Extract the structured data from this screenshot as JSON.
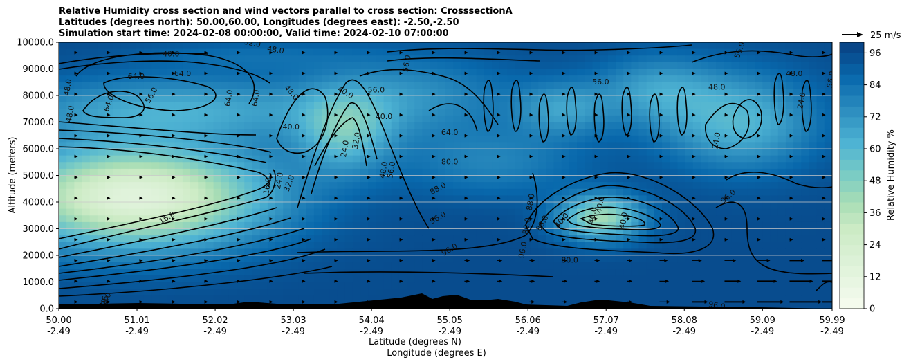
{
  "chart_data": {
    "type": "contourf",
    "title_lines": [
      "Relative Humidity cross section and wind vectors parallel to cross section: CrosssectionA",
      "Latitudes (degrees north): 50.00,60.00, Longitudes (degrees east): -2.50,-2.50",
      "Simulation start time: 2024-02-08 00:00:00, Valid time: 2024-02-10 07:00:00"
    ],
    "ylabel": "Altitude (meters)",
    "xlabel_lines": [
      "Latitude (degrees N)",
      "Longitude (degrees E)"
    ],
    "ylim": [
      0,
      10000
    ],
    "y_ticks": [
      0,
      1000,
      2000,
      3000,
      4000,
      5000,
      6000,
      7000,
      8000,
      9000,
      10000
    ],
    "y_tick_labels": [
      "0.0",
      "1000.0",
      "2000.0",
      "3000.0",
      "4000.0",
      "5000.0",
      "6000.0",
      "7000.0",
      "8000.0",
      "9000.0",
      "10000.0"
    ],
    "xlim": [
      50.0,
      59.99
    ],
    "x_ticks": [
      {
        "lat": "50.00",
        "lon": "-2.49"
      },
      {
        "lat": "51.01",
        "lon": "-2.49"
      },
      {
        "lat": "52.02",
        "lon": "-2.49"
      },
      {
        "lat": "53.03",
        "lon": "-2.49"
      },
      {
        "lat": "54.04",
        "lon": "-2.49"
      },
      {
        "lat": "55.05",
        "lon": "-2.49"
      },
      {
        "lat": "56.06",
        "lon": "-2.49"
      },
      {
        "lat": "57.07",
        "lon": "-2.49"
      },
      {
        "lat": "58.08",
        "lon": "-2.49"
      },
      {
        "lat": "59.09",
        "lon": "-2.49"
      },
      {
        "lat": "59.99",
        "lon": "-2.49"
      }
    ],
    "colorbar": {
      "label": "Relative Humidity %",
      "range": [
        0,
        100
      ],
      "ticks": [
        0,
        12,
        24,
        36,
        48,
        60,
        72,
        84,
        96
      ],
      "levels": [
        0,
        4,
        8,
        12,
        16,
        20,
        24,
        28,
        32,
        36,
        40,
        44,
        48,
        52,
        56,
        60,
        64,
        68,
        72,
        76,
        80,
        84,
        88,
        92,
        96,
        100
      ]
    },
    "contour_labels": [
      {
        "text": "16.0",
        "x": 51.4,
        "y": 3400,
        "rot": -30
      },
      {
        "text": "16.0",
        "x": 52.7,
        "y": 4600,
        "rot": -80
      },
      {
        "text": "24.0",
        "x": 52.85,
        "y": 4800,
        "rot": -80
      },
      {
        "text": "32.0",
        "x": 52.98,
        "y": 4700,
        "rot": -70
      },
      {
        "text": "40.0",
        "x": 51.45,
        "y": 9550,
        "rot": 0
      },
      {
        "text": "32.0",
        "x": 52.5,
        "y": 9950,
        "rot": 10
      },
      {
        "text": "48.0",
        "x": 52.8,
        "y": 9700,
        "rot": 10
      },
      {
        "text": "64.0",
        "x": 51.0,
        "y": 8700,
        "rot": 0
      },
      {
        "text": "64.0",
        "x": 51.6,
        "y": 8800,
        "rot": 0
      },
      {
        "text": "48.0",
        "x": 50.12,
        "y": 8300,
        "rot": -80
      },
      {
        "text": "48.0",
        "x": 50.15,
        "y": 7300,
        "rot": -80
      },
      {
        "text": "64.0",
        "x": 50.65,
        "y": 7700,
        "rot": -70
      },
      {
        "text": "56.0",
        "x": 51.2,
        "y": 8000,
        "rot": -60
      },
      {
        "text": "64.0",
        "x": 52.2,
        "y": 7900,
        "rot": -80
      },
      {
        "text": "64.0",
        "x": 52.55,
        "y": 7900,
        "rot": -80
      },
      {
        "text": "48.0",
        "x": 53.0,
        "y": 8100,
        "rot": 50
      },
      {
        "text": "40.0",
        "x": 53.0,
        "y": 6800,
        "rot": 0
      },
      {
        "text": "40.0",
        "x": 53.7,
        "y": 8100,
        "rot": 30
      },
      {
        "text": "56.0",
        "x": 54.1,
        "y": 8200,
        "rot": 0
      },
      {
        "text": "40.0",
        "x": 54.2,
        "y": 7200,
        "rot": 0
      },
      {
        "text": "56.0",
        "x": 54.5,
        "y": 9200,
        "rot": -80
      },
      {
        "text": "24.0",
        "x": 53.7,
        "y": 6000,
        "rot": -80
      },
      {
        "text": "32.0",
        "x": 53.85,
        "y": 6300,
        "rot": -80
      },
      {
        "text": "48.0",
        "x": 54.2,
        "y": 5200,
        "rot": -80
      },
      {
        "text": "56.0",
        "x": 54.3,
        "y": 5200,
        "rot": -80
      },
      {
        "text": "64.0",
        "x": 55.05,
        "y": 6600,
        "rot": 0
      },
      {
        "text": "80.0",
        "x": 55.05,
        "y": 5500,
        "rot": 0
      },
      {
        "text": "88.0",
        "x": 54.9,
        "y": 4500,
        "rot": -30
      },
      {
        "text": "96.0",
        "x": 54.9,
        "y": 3400,
        "rot": -30
      },
      {
        "text": "96.0",
        "x": 55.05,
        "y": 2200,
        "rot": -30
      },
      {
        "text": "88.0",
        "x": 56.1,
        "y": 4000,
        "rot": -80
      },
      {
        "text": "80.0",
        "x": 56.05,
        "y": 3100,
        "rot": -80
      },
      {
        "text": "96.0",
        "x": 56.0,
        "y": 2200,
        "rot": -80
      },
      {
        "text": "88.0",
        "x": 56.25,
        "y": 3200,
        "rot": -60
      },
      {
        "text": "40.0",
        "x": 56.5,
        "y": 3300,
        "rot": -50
      },
      {
        "text": "40.0",
        "x": 56.9,
        "y": 3500,
        "rot": -80
      },
      {
        "text": "40.0",
        "x": 57.0,
        "y": 3900,
        "rot": -80
      },
      {
        "text": "40.0",
        "x": 57.3,
        "y": 3300,
        "rot": -80
      },
      {
        "text": "80.0",
        "x": 56.6,
        "y": 1800,
        "rot": 0
      },
      {
        "text": "96.0",
        "x": 58.65,
        "y": 4200,
        "rot": -40
      },
      {
        "text": "96.0",
        "x": 58.5,
        "y": 100,
        "rot": 10
      },
      {
        "text": "56.0",
        "x": 57.0,
        "y": 8500,
        "rot": 0
      },
      {
        "text": "48.0",
        "x": 58.5,
        "y": 8300,
        "rot": 0
      },
      {
        "text": "48.0",
        "x": 59.5,
        "y": 8800,
        "rot": 0
      },
      {
        "text": "24.0",
        "x": 58.5,
        "y": 6300,
        "rot": -80
      },
      {
        "text": "56.0",
        "x": 58.8,
        "y": 9700,
        "rot": -70
      },
      {
        "text": "56.0",
        "x": 59.98,
        "y": 8600,
        "rot": -80
      },
      {
        "text": "24.0",
        "x": 59.6,
        "y": 7800,
        "rot": -80
      },
      {
        "text": "88.0",
        "x": 50.6,
        "y": 300,
        "rot": -60
      },
      {
        "text": "96",
        "x": 50.6,
        "y": 300,
        "rot": -80
      }
    ],
    "quiver_key": {
      "label": "25 m/s",
      "speed": 25
    },
    "wind": "horizontal wind component along cross section, stronger (up to ~25 m/s) in the lower troposphere over 58-60 N"
  }
}
